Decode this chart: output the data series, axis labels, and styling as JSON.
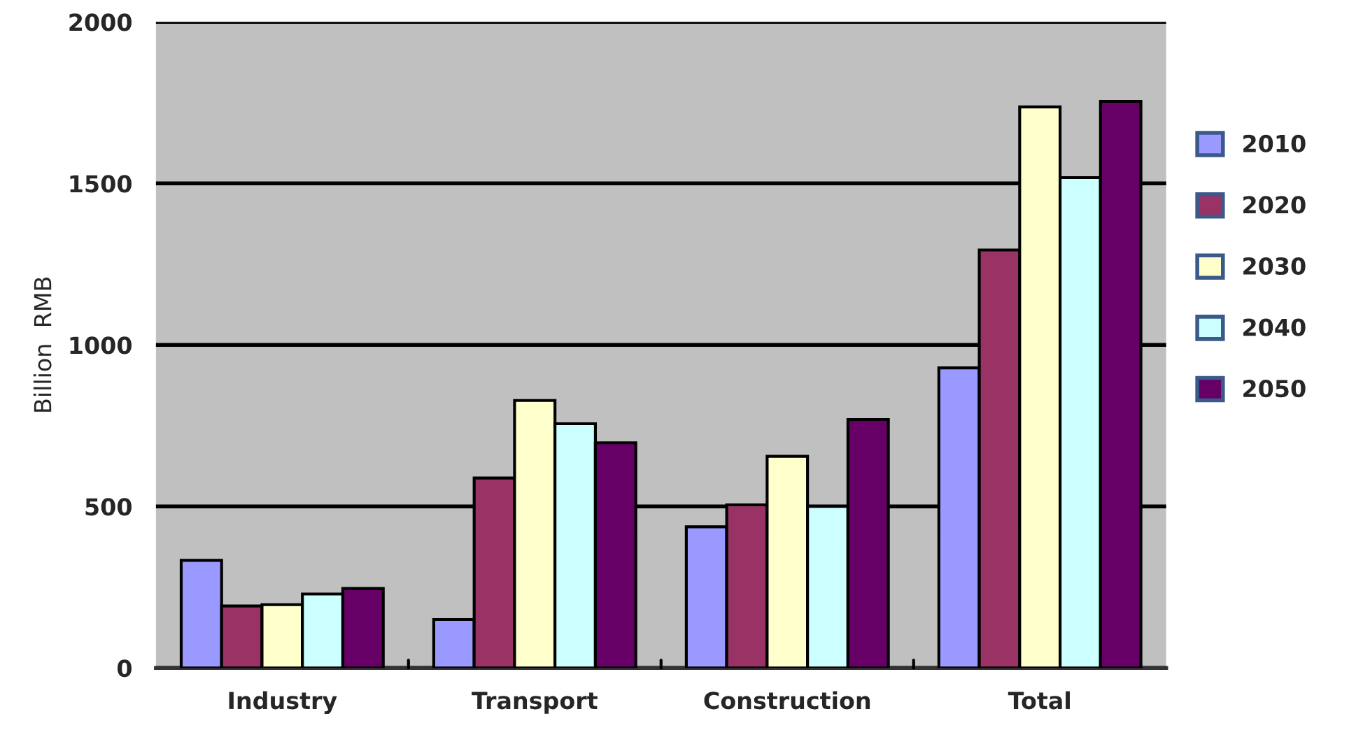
{
  "chart_data": {
    "type": "bar",
    "ylabel": "Billion  RMB",
    "categories": [
      "Industry",
      "Transport",
      "Construction",
      "Total"
    ],
    "series": [
      {
        "name": "2010",
        "color": "#9999ff",
        "values": [
          333,
          150,
          437,
          929
        ]
      },
      {
        "name": "2020",
        "color": "#993366",
        "values": [
          192,
          588,
          505,
          1294
        ]
      },
      {
        "name": "2030",
        "color": "#ffffcc",
        "values": [
          196,
          828,
          655,
          1737
        ]
      },
      {
        "name": "2040",
        "color": "#ccffff",
        "values": [
          229,
          756,
          500,
          1518
        ]
      },
      {
        "name": "2050",
        "color": "#660066",
        "values": [
          246,
          697,
          769,
          1754
        ]
      }
    ],
    "ylim": [
      0,
      2000
    ],
    "yticks": [
      0,
      500,
      1000,
      1500,
      2000
    ],
    "grid": "y",
    "legend": "right"
  }
}
